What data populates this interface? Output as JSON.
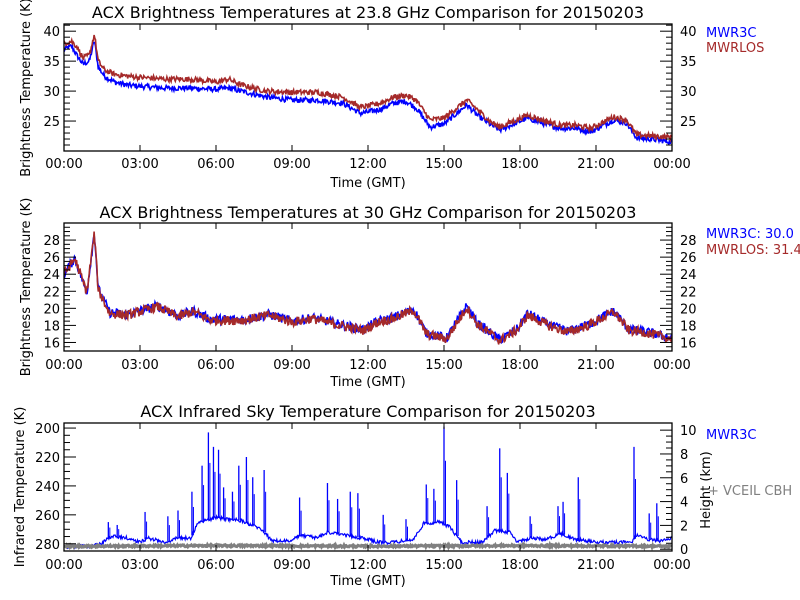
{
  "colors": {
    "mwr3c": "#0000ff",
    "mwrlos": "#a52a2a",
    "vceil": "#808080",
    "axis": "#000000"
  },
  "chart_data": [
    {
      "type": "line",
      "title": "ACX  Brightness Temperatures at 23.8 GHz Comparison for 20150203",
      "xlabel": "Time (GMT)",
      "ylabel": "Brightness Temperature (K)",
      "xlim": [
        0,
        24
      ],
      "ylim": [
        20,
        41.2
      ],
      "xtick_labels": [
        "00:00",
        "03:00",
        "06:00",
        "09:00",
        "12:00",
        "15:00",
        "18:00",
        "21:00",
        "00:00"
      ],
      "yticks": [
        25,
        30,
        35,
        40
      ],
      "ytick_labels": [
        "25",
        "30",
        "35",
        "40"
      ],
      "legend": [
        "MWR3C",
        "MWRLOS"
      ],
      "legend_placement": "right",
      "series": [
        {
          "name": "MWR3C",
          "x": [
            0,
            0.3,
            0.5,
            0.75,
            1.0,
            1.2,
            1.35,
            1.6,
            2,
            2.5,
            3,
            4,
            5,
            6,
            6.5,
            7,
            8,
            9,
            10,
            11,
            11.7,
            12,
            12.5,
            13,
            13.5,
            13.9,
            14.45,
            15,
            15.9,
            16.3,
            16.8,
            17.2,
            18.3,
            19,
            19.6,
            20.2,
            20.8,
            21.7,
            22.2,
            22.6,
            23.2,
            24
          ],
          "values": [
            37,
            37.5,
            36,
            34.5,
            35,
            38.5,
            34,
            32.5,
            31.5,
            31,
            30.8,
            30.5,
            30.5,
            30.3,
            30.5,
            30,
            29,
            28.5,
            28.5,
            28,
            26.3,
            26.5,
            27,
            28,
            28.3,
            27.2,
            24,
            24.5,
            27.7,
            26,
            24.5,
            23.5,
            25.5,
            24.5,
            23.8,
            23.8,
            23.2,
            25.2,
            24.7,
            22.2,
            22,
            21.5
          ]
        },
        {
          "name": "MWRLOS",
          "x": [
            0,
            0.3,
            0.5,
            0.75,
            1.0,
            1.2,
            1.35,
            1.6,
            2,
            2.5,
            3,
            4,
            5,
            6,
            6.5,
            7,
            8,
            9,
            10,
            11,
            11.7,
            12,
            12.5,
            13,
            13.5,
            13.9,
            14.45,
            15,
            15.9,
            16.3,
            16.8,
            17.2,
            18.3,
            19,
            19.6,
            20.2,
            20.8,
            21.7,
            22.2,
            22.6,
            23.2,
            24
          ],
          "values": [
            38,
            38.3,
            37.5,
            35.5,
            36,
            39.5,
            35,
            33.5,
            32.8,
            32.5,
            32.3,
            32,
            32,
            31.5,
            32,
            31,
            30,
            29.8,
            29.8,
            29,
            27.3,
            27.5,
            28,
            29,
            29.3,
            28.5,
            25.2,
            25.5,
            28.5,
            27,
            25,
            24,
            26,
            25,
            24.3,
            24.3,
            23.8,
            25.7,
            25.2,
            22.7,
            22.5,
            22.3
          ]
        }
      ]
    },
    {
      "type": "line",
      "title": "ACX  Brightness Temperatures at 30 GHz Comparison for 20150203",
      "xlabel": "Time (GMT)",
      "ylabel": "Brightness Temperature (K)",
      "xlim": [
        0,
        24
      ],
      "ylim": [
        15,
        30
      ],
      "xtick_labels": [
        "00:00",
        "03:00",
        "06:00",
        "09:00",
        "12:00",
        "15:00",
        "18:00",
        "21:00",
        "00:00"
      ],
      "yticks": [
        16,
        18,
        20,
        22,
        24,
        26,
        28
      ],
      "ytick_labels": [
        "16",
        "18",
        "20",
        "22",
        "24",
        "26",
        "28"
      ],
      "legend": [
        "MWR3C: 30.0",
        "MWRLOS: 31.4"
      ],
      "legend_placement": "right",
      "series": [
        {
          "name": "MWR3C",
          "x": [
            0,
            0.43,
            0.9,
            1.2,
            1.35,
            1.8,
            2.5,
            3.7,
            4.5,
            5.1,
            5.8,
            7.1,
            8.1,
            9,
            9.8,
            10.9,
            11.8,
            12.4,
            13,
            13.8,
            14.3,
            15.1,
            15.9,
            16.3,
            17.2,
            17.9,
            18.3,
            19.1,
            19.9,
            20.7,
            21.7,
            22.3,
            22.9,
            24
          ],
          "values": [
            24,
            25.9,
            21.8,
            29,
            22.3,
            19.5,
            19.3,
            20.3,
            19.1,
            19.7,
            18.7,
            18.7,
            19.3,
            18.5,
            18.9,
            18.1,
            17.5,
            18.5,
            18.9,
            19.9,
            17.1,
            16.5,
            20.3,
            18.3,
            16.3,
            17.6,
            19.4,
            18.1,
            17.3,
            18.1,
            19.7,
            17.5,
            17.3,
            16.5
          ]
        },
        {
          "name": "MWRLOS",
          "x": [
            0,
            0.43,
            0.9,
            1.2,
            1.35,
            1.8,
            2.5,
            3.7,
            4.5,
            5.1,
            5.8,
            7.1,
            8.1,
            9,
            9.8,
            10.9,
            11.8,
            12.4,
            13,
            13.8,
            14.3,
            15.1,
            15.9,
            16.3,
            17.2,
            17.9,
            18.3,
            19.1,
            19.9,
            20.7,
            21.7,
            22.3,
            22.9,
            24
          ],
          "values": [
            24,
            25.8,
            21.9,
            28.8,
            22.2,
            19.4,
            19.2,
            20.2,
            19,
            19.6,
            18.6,
            18.6,
            19.2,
            18.4,
            18.8,
            18,
            17.4,
            18.4,
            18.8,
            19.8,
            17,
            16.4,
            20.1,
            18.2,
            16.2,
            17.5,
            19.2,
            18,
            17.2,
            18,
            19.6,
            17.4,
            17.2,
            16.4
          ]
        }
      ]
    },
    {
      "type": "line",
      "title": "ACX  Infrared Sky Temperature Comparison for 20150203",
      "xlabel": "Time (GMT)",
      "ylabel": "Infrared Temperature (K)",
      "y2label": "Height (km)",
      "xlim": [
        0,
        24
      ],
      "ylim": [
        285,
        196.5
      ],
      "y2lim": [
        -0.15,
        10.6
      ],
      "xtick_labels": [
        "00:00",
        "03:00",
        "06:00",
        "09:00",
        "12:00",
        "15:00",
        "18:00",
        "21:00",
        "00:00"
      ],
      "yticks": [
        200,
        220,
        240,
        260,
        280
      ],
      "ytick_labels": [
        "200",
        "220",
        "240",
        "260",
        "280"
      ],
      "y2ticks": [
        0,
        2,
        4,
        6,
        8,
        10
      ],
      "y2tick_labels": [
        "0",
        "2",
        "4",
        "6",
        "8",
        "10"
      ],
      "legend": [
        "MWR3C",
        "+ VCEIL CBH"
      ],
      "legend_placement": "right",
      "series": [
        {
          "name": "MWR3C",
          "x": [
            0,
            1,
            1.5,
            1.7,
            2,
            2.5,
            3,
            3.3,
            4,
            4.5,
            5,
            5.3,
            6,
            7,
            7.8,
            8.2,
            9,
            9.3,
            10,
            10.4,
            11,
            11.8,
            12.4,
            13,
            13.8,
            14.2,
            14.8,
            15.2,
            15.7,
            16.5,
            17,
            17.6,
            17.9,
            18.4,
            19,
            19.6,
            20.2,
            21,
            22,
            22.4,
            22.6,
            23,
            23.5,
            24
          ],
          "values": [
            282,
            281.5,
            280,
            276,
            275,
            276,
            279,
            276,
            279,
            276,
            276,
            265,
            262,
            264,
            270,
            278,
            278,
            274,
            276,
            272,
            274,
            276,
            279,
            279,
            277,
            266,
            265,
            268,
            279,
            279,
            271,
            272,
            279,
            276,
            277,
            273,
            277,
            279,
            279,
            279,
            274,
            277,
            278,
            276
          ],
          "spikes": [
            [
              1.75,
              265
            ],
            [
              2.1,
              267
            ],
            [
              3.2,
              258
            ],
            [
              4.1,
              261
            ],
            [
              4.5,
              257
            ],
            [
              5.05,
              244
            ],
            [
              5.45,
              226
            ],
            [
              5.7,
              203
            ],
            [
              5.9,
              213
            ],
            [
              6.1,
              215
            ],
            [
              6.3,
              241
            ],
            [
              6.65,
              244
            ],
            [
              6.9,
              226
            ],
            [
              7.2,
              220
            ],
            [
              7.45,
              234
            ],
            [
              7.9,
              229
            ],
            [
              9.3,
              248
            ],
            [
              10.4,
              238
            ],
            [
              10.8,
              249
            ],
            [
              11.3,
              244
            ],
            [
              11.6,
              245
            ],
            [
              12.6,
              260
            ],
            [
              13.5,
              263
            ],
            [
              14.3,
              239
            ],
            [
              14.6,
              242
            ],
            [
              15.0,
              199
            ],
            [
              15.5,
              236
            ],
            [
              16.7,
              254
            ],
            [
              17.2,
              214
            ],
            [
              17.5,
              231
            ],
            [
              18.4,
              261
            ],
            [
              19.5,
              254
            ],
            [
              19.7,
              251
            ],
            [
              20.3,
              234
            ],
            [
              22.5,
              213
            ],
            [
              23.1,
              259
            ],
            [
              23.4,
              252
            ]
          ]
        },
        {
          "name": "VCEIL CBH",
          "axis": "y2",
          "x": [
            0,
            6,
            12,
            18,
            24
          ],
          "values": [
            0.25,
            0.3,
            0.25,
            0.3,
            0.25
          ]
        }
      ]
    }
  ]
}
